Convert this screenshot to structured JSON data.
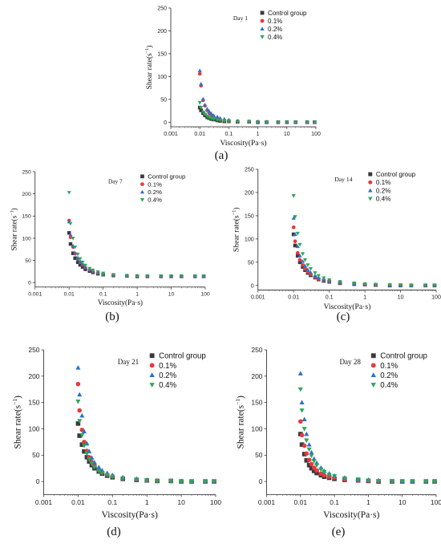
{
  "series_styles": [
    {
      "name": "Control group",
      "color": "#3a3a3a",
      "marker": "square"
    },
    {
      "name": "0.1%",
      "color": "#e8383d",
      "marker": "circle"
    },
    {
      "name": "0.2%",
      "color": "#2f6fcf",
      "marker": "triangle-up"
    },
    {
      "name": "0.4%",
      "color": "#2aa85a",
      "marker": "triangle-down"
    }
  ],
  "chart_data": [
    {
      "type": "scatter",
      "caption": "(a)",
      "day_label": "Day 1",
      "xlabel": "Viscosity(Pa·s)",
      "ylabel": "Shear rate(s",
      "ylabel_sup": "−1",
      "ylabel_close": ")",
      "x_scale": "log",
      "xlim": [
        0.001,
        100
      ],
      "ylim": [
        -10,
        250
      ],
      "x_ticks": [
        "0.001",
        "0.01",
        "0.1",
        "1",
        "10",
        "100"
      ],
      "y_ticks": [
        "0",
        "50",
        "100",
        "150",
        "200",
        "250"
      ],
      "grid": false,
      "legend": "top-right",
      "series": [
        {
          "name": "Control group",
          "x": [
            0.01,
            0.011,
            0.013,
            0.015,
            0.018,
            0.021,
            0.025,
            0.03,
            0.04,
            0.05,
            0.07,
            0.1,
            0.2,
            0.5,
            1,
            2,
            5,
            10,
            20,
            50,
            90
          ],
          "y": [
            32,
            26,
            20,
            15,
            11,
            9,
            7,
            6,
            4,
            3,
            2,
            2,
            1,
            1,
            0,
            0,
            0,
            0,
            0,
            0,
            0
          ]
        },
        {
          "name": "0.1%",
          "x": [
            0.01,
            0.011,
            0.013,
            0.015,
            0.018,
            0.021,
            0.025,
            0.03,
            0.04,
            0.05,
            0.07,
            0.1,
            0.2,
            0.5,
            1,
            2,
            5,
            10,
            20,
            50,
            90
          ],
          "y": [
            106,
            80,
            48,
            36,
            26,
            20,
            15,
            11,
            8,
            6,
            4,
            3,
            2,
            1,
            1,
            0,
            0,
            0,
            0,
            0,
            0
          ]
        },
        {
          "name": "0.2%",
          "x": [
            0.01,
            0.011,
            0.013,
            0.015,
            0.018,
            0.021,
            0.025,
            0.03,
            0.04,
            0.05,
            0.07,
            0.1,
            0.2,
            0.5,
            1,
            2,
            5,
            10,
            20,
            50,
            90
          ],
          "y": [
            113,
            84,
            51,
            38,
            29,
            24,
            19,
            15,
            12,
            9,
            7,
            5,
            3,
            2,
            1,
            1,
            0,
            0,
            0,
            0,
            0
          ]
        },
        {
          "name": "0.4%",
          "x": [
            0.01,
            0.011,
            0.013,
            0.015,
            0.018,
            0.021,
            0.025,
            0.03,
            0.04,
            0.05,
            0.07,
            0.1,
            0.2,
            0.5,
            1,
            2,
            5,
            10,
            20,
            50,
            90
          ],
          "y": [
            43,
            32,
            22,
            17,
            13,
            10,
            8,
            6,
            5,
            4,
            3,
            2,
            1,
            1,
            0,
            0,
            0,
            0,
            0,
            0,
            0
          ]
        }
      ]
    },
    {
      "type": "scatter",
      "caption": "(b)",
      "day_label": "Day 7",
      "xlabel": "Viscosity(Pa·s)",
      "ylabel": "Shear rate(s",
      "ylabel_sup": "−1",
      "ylabel_close": ")",
      "x_scale": "log",
      "xlim": [
        0.001,
        100
      ],
      "ylim": [
        -10,
        250
      ],
      "x_ticks": [
        "0.001",
        "0.01",
        "0.1",
        "1",
        "10",
        "100"
      ],
      "y_ticks": [
        "0",
        "50",
        "100",
        "150",
        "200",
        "250"
      ],
      "grid": false,
      "legend": "top-right",
      "series": [
        {
          "name": "Control group",
          "x": [
            0.01,
            0.011,
            0.013,
            0.015,
            0.018,
            0.021,
            0.025,
            0.03,
            0.04,
            0.05,
            0.07,
            0.1,
            0.2,
            0.5,
            1,
            2,
            5,
            10,
            20,
            50,
            90
          ],
          "y": [
            112,
            87,
            66,
            55,
            46,
            40,
            35,
            30,
            26,
            23,
            20,
            18,
            16,
            15,
            14,
            14,
            14,
            14,
            14,
            14,
            14
          ]
        },
        {
          "name": "0.1%",
          "x": [
            0.01,
            0.011,
            0.013,
            0.015,
            0.018,
            0.021,
            0.025,
            0.03,
            0.04,
            0.05,
            0.07,
            0.1,
            0.2,
            0.5,
            1,
            2,
            5,
            10,
            20,
            50,
            90
          ],
          "y": [
            140,
            102,
            80,
            65,
            54,
            46,
            40,
            34,
            29,
            25,
            22,
            19,
            17,
            15,
            15,
            14,
            14,
            14,
            14,
            14,
            14
          ]
        },
        {
          "name": "0.2%",
          "x": [
            0.01,
            0.011,
            0.013,
            0.015,
            0.018,
            0.021,
            0.025,
            0.03,
            0.04,
            0.05,
            0.07,
            0.1,
            0.2,
            0.5,
            1,
            2,
            5,
            10,
            20,
            50,
            90
          ],
          "y": [
            137,
            108,
            83,
            67,
            56,
            48,
            41,
            35,
            30,
            26,
            22,
            20,
            17,
            16,
            15,
            15,
            14,
            14,
            14,
            14,
            14
          ]
        },
        {
          "name": "0.4%",
          "x": [
            0.01,
            0.011,
            0.013,
            0.015,
            0.018,
            0.021,
            0.025,
            0.03,
            0.04,
            0.05,
            0.07,
            0.1,
            0.2,
            0.5,
            1,
            2,
            5,
            10,
            20,
            50,
            90
          ],
          "y": [
            203,
            133,
            100,
            80,
            64,
            54,
            46,
            39,
            32,
            28,
            24,
            21,
            18,
            16,
            15,
            15,
            15,
            15,
            15,
            15,
            15
          ]
        }
      ]
    },
    {
      "type": "scatter",
      "caption": "(c)",
      "day_label": "Day 14",
      "xlabel": "Viscosity(Pa·s)",
      "ylabel": "Shear rate(s",
      "ylabel_sup": "−1",
      "ylabel_close": ")",
      "x_scale": "log",
      "xlim": [
        0.001,
        100
      ],
      "ylim": [
        -10,
        250
      ],
      "x_ticks": [
        "0.001",
        "0.01",
        "0.1",
        "1",
        "10",
        "100"
      ],
      "y_ticks": [
        "0",
        "50",
        "100",
        "150",
        "200",
        "250"
      ],
      "grid": false,
      "legend": "top-right",
      "series": [
        {
          "name": "Control group",
          "x": [
            0.01,
            0.011,
            0.013,
            0.015,
            0.018,
            0.021,
            0.025,
            0.03,
            0.04,
            0.05,
            0.07,
            0.1,
            0.2,
            0.5,
            1,
            2,
            5,
            10,
            20,
            50,
            90
          ],
          "y": [
            110,
            86,
            64,
            50,
            40,
            33,
            27,
            22,
            17,
            13,
            10,
            8,
            5,
            3,
            2,
            1,
            0,
            0,
            0,
            0,
            0
          ]
        },
        {
          "name": "0.1%",
          "x": [
            0.01,
            0.011,
            0.013,
            0.015,
            0.018,
            0.021,
            0.025,
            0.03,
            0.04,
            0.05,
            0.07,
            0.1,
            0.2,
            0.5,
            1,
            2,
            5,
            10,
            20,
            50,
            90
          ],
          "y": [
            125,
            95,
            70,
            55,
            44,
            36,
            29,
            24,
            18,
            14,
            11,
            9,
            6,
            4,
            2,
            1,
            1,
            0,
            0,
            0,
            0
          ]
        },
        {
          "name": "0.2%",
          "x": [
            0.01,
            0.011,
            0.013,
            0.015,
            0.018,
            0.021,
            0.025,
            0.03,
            0.04,
            0.05,
            0.07,
            0.1,
            0.2,
            0.5,
            1,
            2,
            5,
            10,
            20,
            50,
            90
          ],
          "y": [
            145,
            110,
            84,
            64,
            52,
            42,
            34,
            28,
            21,
            17,
            13,
            10,
            7,
            4,
            3,
            2,
            1,
            0,
            0,
            0,
            0
          ]
        },
        {
          "name": "0.4%",
          "x": [
            0.01,
            0.011,
            0.013,
            0.015,
            0.018,
            0.021,
            0.025,
            0.03,
            0.04,
            0.05,
            0.07,
            0.1,
            0.2,
            0.5,
            1,
            2,
            5,
            10,
            20,
            50,
            90
          ],
          "y": [
            193,
            148,
            112,
            88,
            68,
            55,
            44,
            36,
            27,
            21,
            16,
            12,
            8,
            5,
            3,
            2,
            1,
            1,
            0,
            0,
            0
          ]
        }
      ]
    },
    {
      "type": "scatter",
      "caption": "(d)",
      "day_label": "Day 21",
      "xlabel": "Viscosity(Pa·s)",
      "ylabel": "Shear rate(s",
      "ylabel_sup": "−1",
      "ylabel_close": ")",
      "x_scale": "log",
      "xlim": [
        0.001,
        100
      ],
      "ylim": [
        -25,
        250
      ],
      "x_ticks": [
        "0.001",
        "0.01",
        "0.1",
        "1",
        "10",
        "100"
      ],
      "y_ticks": [
        "0",
        "50",
        "100",
        "150",
        "200",
        "250"
      ],
      "grid": false,
      "legend": "top-right",
      "series": [
        {
          "name": "Control group",
          "x": [
            0.01,
            0.011,
            0.013,
            0.015,
            0.018,
            0.021,
            0.025,
            0.03,
            0.04,
            0.05,
            0.07,
            0.1,
            0.2,
            0.5,
            1,
            2,
            5,
            10,
            20,
            50,
            90
          ],
          "y": [
            110,
            87,
            70,
            57,
            46,
            38,
            31,
            25,
            19,
            15,
            11,
            8,
            5,
            3,
            2,
            1,
            1,
            0,
            0,
            0,
            0
          ]
        },
        {
          "name": "0.1%",
          "x": [
            0.01,
            0.011,
            0.013,
            0.015,
            0.018,
            0.021,
            0.025,
            0.03,
            0.04,
            0.05,
            0.07,
            0.1,
            0.2,
            0.5,
            1,
            2,
            5,
            10,
            20,
            50,
            90
          ],
          "y": [
            185,
            135,
            98,
            75,
            58,
            46,
            37,
            30,
            22,
            17,
            13,
            10,
            6,
            4,
            2,
            1,
            1,
            0,
            0,
            0,
            0
          ]
        },
        {
          "name": "0.2%",
          "x": [
            0.01,
            0.011,
            0.013,
            0.015,
            0.018,
            0.021,
            0.025,
            0.03,
            0.04,
            0.05,
            0.07,
            0.1,
            0.2,
            0.5,
            1,
            2,
            5,
            10,
            20,
            50,
            90
          ],
          "y": [
            216,
            165,
            125,
            95,
            72,
            57,
            45,
            36,
            27,
            21,
            16,
            12,
            8,
            5,
            3,
            2,
            1,
            1,
            0,
            0,
            0
          ]
        },
        {
          "name": "0.4%",
          "x": [
            0.01,
            0.011,
            0.013,
            0.015,
            0.018,
            0.021,
            0.025,
            0.03,
            0.04,
            0.05,
            0.07,
            0.1,
            0.2,
            0.5,
            1,
            2,
            5,
            10,
            20,
            50,
            90
          ],
          "y": [
            152,
            115,
            88,
            68,
            53,
            42,
            34,
            27,
            20,
            16,
            12,
            9,
            6,
            4,
            2,
            1,
            1,
            0,
            0,
            0,
            0
          ]
        }
      ]
    },
    {
      "type": "scatter",
      "caption": "(e)",
      "day_label": "Day 28",
      "xlabel": "Viscosity(Pa·s)",
      "ylabel": "Shear rate(s",
      "ylabel_sup": "−1",
      "ylabel_close": ")",
      "x_scale": "log",
      "xlim": [
        0.001,
        100
      ],
      "ylim": [
        -25,
        250
      ],
      "x_ticks": [
        "0.001",
        "0.01",
        "0.1",
        "1",
        "10",
        "100"
      ],
      "y_ticks": [
        "0",
        "50",
        "100",
        "150",
        "200",
        "250"
      ],
      "grid": false,
      "legend": "top-right",
      "series": [
        {
          "name": "Control group",
          "x": [
            0.01,
            0.011,
            0.013,
            0.015,
            0.018,
            0.021,
            0.025,
            0.03,
            0.04,
            0.05,
            0.07,
            0.1,
            0.2,
            0.5,
            1,
            2,
            5,
            10,
            20,
            50,
            90
          ],
          "y": [
            90,
            70,
            52,
            40,
            31,
            25,
            20,
            16,
            12,
            9,
            7,
            5,
            3,
            2,
            1,
            0,
            0,
            0,
            0,
            0,
            0
          ]
        },
        {
          "name": "0.1%",
          "x": [
            0.01,
            0.011,
            0.013,
            0.015,
            0.018,
            0.021,
            0.025,
            0.03,
            0.04,
            0.05,
            0.07,
            0.1,
            0.2,
            0.5,
            1,
            2,
            5,
            10,
            20,
            50,
            90
          ],
          "y": [
            114,
            88,
            68,
            53,
            41,
            33,
            26,
            21,
            15,
            12,
            9,
            7,
            4,
            2,
            1,
            1,
            0,
            0,
            0,
            0,
            0
          ]
        },
        {
          "name": "0.2%",
          "x": [
            0.01,
            0.011,
            0.013,
            0.015,
            0.018,
            0.021,
            0.025,
            0.03,
            0.04,
            0.05,
            0.07,
            0.1,
            0.2,
            0.5,
            1,
            2,
            5,
            10,
            20,
            50,
            90
          ],
          "y": [
            205,
            150,
            118,
            90,
            70,
            55,
            43,
            35,
            26,
            20,
            15,
            11,
            7,
            4,
            3,
            2,
            1,
            0,
            0,
            0,
            0
          ]
        },
        {
          "name": "0.4%",
          "x": [
            0.01,
            0.011,
            0.013,
            0.015,
            0.018,
            0.021,
            0.025,
            0.03,
            0.04,
            0.05,
            0.07,
            0.1,
            0.2,
            0.5,
            1,
            2,
            5,
            10,
            20,
            50,
            90
          ],
          "y": [
            175,
            135,
            100,
            78,
            61,
            49,
            39,
            31,
            23,
            18,
            13,
            10,
            6,
            4,
            2,
            1,
            1,
            0,
            0,
            0,
            0
          ]
        }
      ]
    }
  ]
}
